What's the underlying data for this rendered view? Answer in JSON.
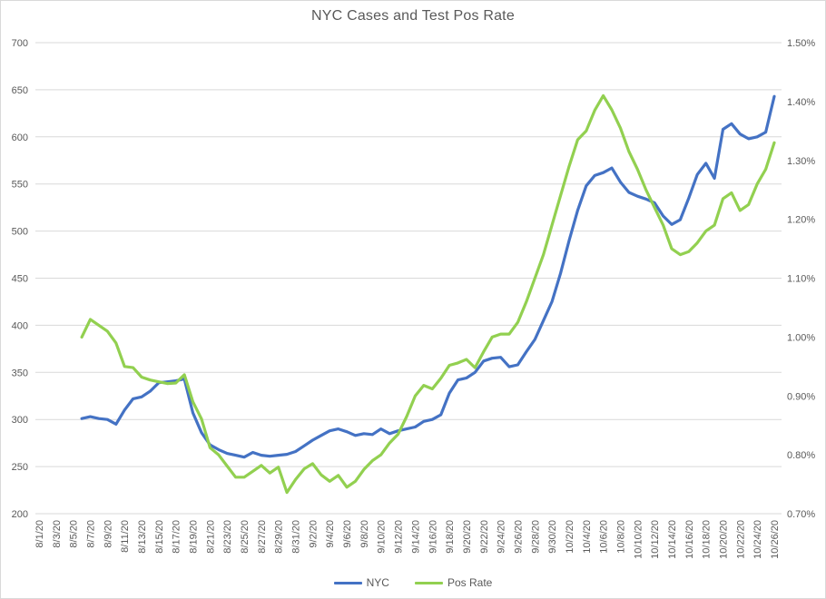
{
  "title": "NYC Cases and Test Pos Rate",
  "legend": {
    "items": [
      {
        "label": "NYC",
        "color": "#4472C4"
      },
      {
        "label": "Pos Rate",
        "color": "#92D050"
      }
    ]
  },
  "colors": {
    "nyc_line": "#4472C4",
    "pos_rate_line": "#92D050",
    "gridline": "#d9d9d9",
    "axis_text": "#595959",
    "title_text": "#595959",
    "background": "#ffffff"
  },
  "chart_data": {
    "type": "line",
    "title": "NYC Cases and Test Pos Rate",
    "grid": true,
    "legend_position": "bottom",
    "x_axis": {
      "first_category": "8/1/20",
      "last_category": "10/26/20",
      "label_interval_days": 2,
      "labels": [
        "8/1/20",
        "8/3/20",
        "8/5/20",
        "8/7/20",
        "8/9/20",
        "8/11/20",
        "8/13/20",
        "8/15/20",
        "8/17/20",
        "8/19/20",
        "8/21/20",
        "8/23/20",
        "8/25/20",
        "8/27/20",
        "8/29/20",
        "8/31/20",
        "9/2/20",
        "9/4/20",
        "9/6/20",
        "9/8/20",
        "9/10/20",
        "9/12/20",
        "9/14/20",
        "9/16/20",
        "9/18/20",
        "9/20/20",
        "9/22/20",
        "9/24/20",
        "9/26/20",
        "9/28/20",
        "9/30/20",
        "10/2/20",
        "10/4/20",
        "10/6/20",
        "10/8/20",
        "10/10/20",
        "10/12/20",
        "10/14/20",
        "10/16/20",
        "10/18/20",
        "10/20/20",
        "10/22/20",
        "10/24/20",
        "10/26/20"
      ]
    },
    "y_left": {
      "min": 200,
      "max": 700,
      "step": 50,
      "ticks": [
        "700",
        "650",
        "600",
        "550",
        "500",
        "450",
        "400",
        "350",
        "300",
        "250",
        "200"
      ]
    },
    "y_right": {
      "min": 0.7,
      "max": 1.5,
      "step": 0.1,
      "ticks": [
        "1.50%",
        "1.40%",
        "1.30%",
        "1.20%",
        "1.10%",
        "1.00%",
        "0.90%",
        "0.80%",
        "0.70%"
      ]
    },
    "data_start_offset_days": 5,
    "x": [
      "8/6/20",
      "8/7/20",
      "8/8/20",
      "8/9/20",
      "8/10/20",
      "8/11/20",
      "8/12/20",
      "8/13/20",
      "8/14/20",
      "8/15/20",
      "8/16/20",
      "8/17/20",
      "8/18/20",
      "8/19/20",
      "8/20/20",
      "8/21/20",
      "8/22/20",
      "8/23/20",
      "8/24/20",
      "8/25/20",
      "8/26/20",
      "8/27/20",
      "8/28/20",
      "8/29/20",
      "8/30/20",
      "8/31/20",
      "9/1/20",
      "9/2/20",
      "9/3/20",
      "9/4/20",
      "9/5/20",
      "9/6/20",
      "9/7/20",
      "9/8/20",
      "9/9/20",
      "9/10/20",
      "9/11/20",
      "9/12/20",
      "9/13/20",
      "9/14/20",
      "9/15/20",
      "9/16/20",
      "9/17/20",
      "9/18/20",
      "9/19/20",
      "9/20/20",
      "9/21/20",
      "9/22/20",
      "9/23/20",
      "9/24/20",
      "9/25/20",
      "9/26/20",
      "9/27/20",
      "9/28/20",
      "9/29/20",
      "9/30/20",
      "10/1/20",
      "10/2/20",
      "10/3/20",
      "10/4/20",
      "10/5/20",
      "10/6/20",
      "10/7/20",
      "10/8/20",
      "10/9/20",
      "10/10/20",
      "10/11/20",
      "10/12/20",
      "10/13/20",
      "10/14/20",
      "10/15/20",
      "10/16/20",
      "10/17/20",
      "10/18/20",
      "10/19/20",
      "10/20/20",
      "10/21/20",
      "10/22/20",
      "10/23/20",
      "10/24/20",
      "10/25/20",
      "10/26/20"
    ],
    "series": [
      {
        "name": "NYC",
        "axis": "left",
        "color": "#4472C4",
        "values": [
          301,
          303,
          301,
          300,
          295,
          310,
          322,
          324,
          330,
          339,
          340,
          341,
          343,
          307,
          286,
          273,
          268,
          264,
          262,
          260,
          265,
          262,
          261,
          262,
          263,
          266,
          272,
          278,
          283,
          288,
          290,
          287,
          283,
          285,
          284,
          290,
          285,
          288,
          290,
          292,
          298,
          300,
          305,
          328,
          342,
          344,
          350,
          362,
          365,
          366,
          356,
          358,
          372,
          385,
          405,
          425,
          455,
          490,
          522,
          548,
          559,
          562,
          567,
          552,
          541,
          537,
          534,
          530,
          516,
          507,
          512,
          535,
          560,
          572,
          556,
          608,
          614,
          603,
          598,
          600,
          605,
          643
        ]
      },
      {
        "name": "Pos Rate",
        "axis": "right",
        "color": "#92D050",
        "unit": "%",
        "values": [
          1.0,
          1.03,
          1.02,
          1.01,
          0.99,
          0.95,
          0.948,
          0.932,
          0.927,
          0.924,
          0.921,
          0.922,
          0.936,
          0.89,
          0.861,
          0.812,
          0.8,
          0.781,
          0.762,
          0.762,
          0.772,
          0.782,
          0.769,
          0.779,
          0.736,
          0.758,
          0.776,
          0.785,
          0.766,
          0.755,
          0.765,
          0.745,
          0.755,
          0.775,
          0.79,
          0.8,
          0.82,
          0.835,
          0.865,
          0.9,
          0.918,
          0.912,
          0.93,
          0.952,
          0.956,
          0.962,
          0.948,
          0.975,
          1.0,
          1.005,
          1.005,
          1.025,
          1.06,
          1.1,
          1.14,
          1.19,
          1.24,
          1.29,
          1.335,
          1.35,
          1.385,
          1.41,
          1.386,
          1.355,
          1.315,
          1.285,
          1.25,
          1.22,
          1.19,
          1.15,
          1.14,
          1.145,
          1.16,
          1.18,
          1.19,
          1.235,
          1.245,
          1.215,
          1.225,
          1.26,
          1.285,
          1.33
        ]
      }
    ]
  }
}
